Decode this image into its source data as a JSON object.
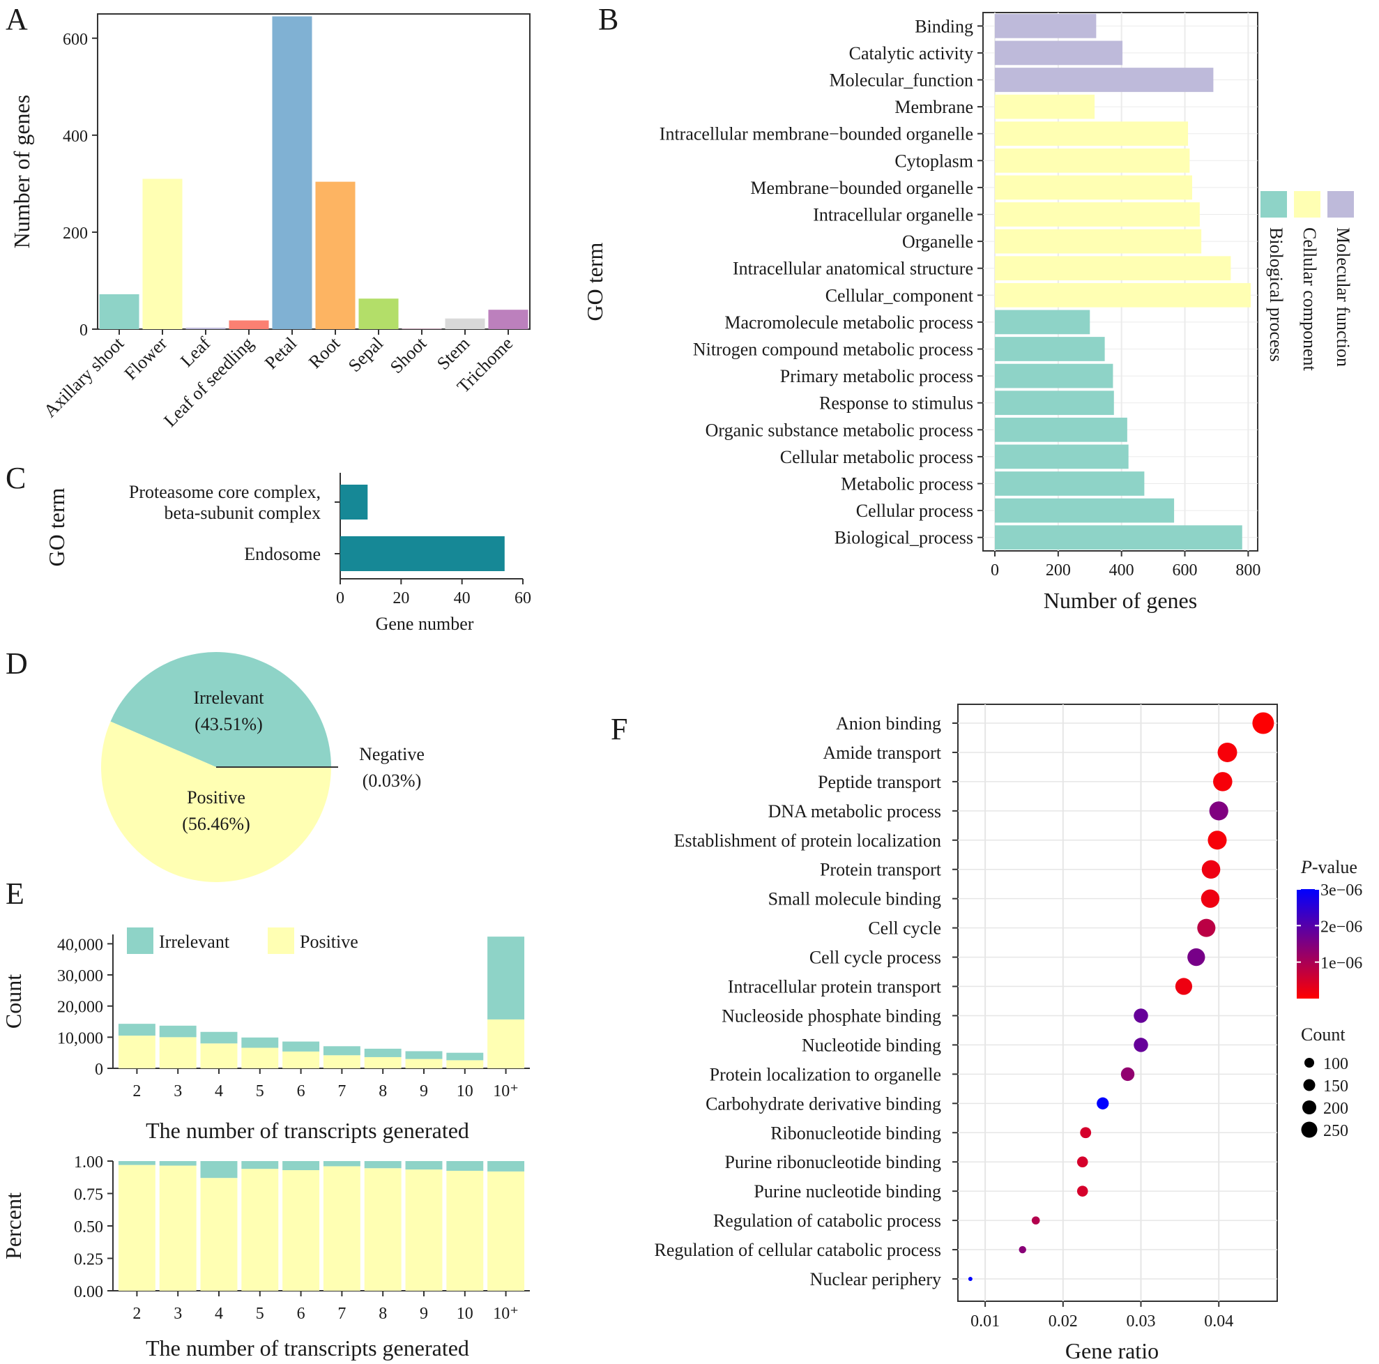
{
  "panels": {
    "A": "A",
    "B": "B",
    "C": "C",
    "D": "D",
    "E": "E",
    "F": "F"
  },
  "colors": {
    "teal": "#8ed3c7",
    "yellow": "#ffffb3",
    "lavender": "#bebada",
    "salmon": "#fb8072",
    "blue": "#80b1d3",
    "orange": "#fdb462",
    "green": "#b3de69",
    "pink": "#fccde5",
    "grey": "#d9d9d9",
    "purple": "#bc80bd",
    "darkteal": "#168896"
  },
  "chart_data": [
    {
      "id": "A",
      "type": "bar",
      "title": "",
      "xlabel": "",
      "ylabel": "Number of genes",
      "ylim": [
        0,
        650
      ],
      "yticks": [
        0,
        200,
        400,
        600
      ],
      "categories": [
        "Axillary shoot",
        "Flower",
        "Leaf",
        "Leaf of seedling",
        "Petal",
        "Root",
        "Sepal",
        "Shoot",
        "Stem",
        "Trichome"
      ],
      "values": [
        72,
        310,
        3,
        18,
        645,
        304,
        63,
        1,
        22,
        40
      ],
      "bar_colors": [
        "#8ed3c7",
        "#ffffb3",
        "#bebada",
        "#fb8072",
        "#80b1d3",
        "#fdb462",
        "#b3de69",
        "#fccde5",
        "#d9d9d9",
        "#bc80bd"
      ]
    },
    {
      "id": "B",
      "type": "bar",
      "orientation": "horizontal",
      "xlabel": "Number of genes",
      "ylabel": "GO term",
      "xlim": [
        0,
        830
      ],
      "xticks": [
        0,
        200,
        400,
        600,
        800
      ],
      "categories": [
        "Binding",
        "Catalytic activity",
        "Molecular_function",
        "Membrane",
        "Intracellular membrane−bounded organelle",
        "Cytoplasm",
        "Membrane−bounded organelle",
        "Intracellular organelle",
        "Organelle",
        "Intracellular anatomical structure",
        "Cellular_component",
        "Macromolecule metabolic process",
        "Nitrogen compound metabolic process",
        "Primary metabolic process",
        "Response to stimulus",
        "Organic substance metabolic process",
        "Cellular metabolic process",
        "Metabolic process",
        "Cellular process",
        "Biological_process"
      ],
      "values": [
        320,
        403,
        690,
        315,
        610,
        615,
        623,
        647,
        652,
        745,
        808,
        300,
        347,
        373,
        376,
        418,
        422,
        472,
        566,
        781
      ],
      "groups": [
        "Molecular function",
        "Molecular function",
        "Molecular function",
        "Cellular component",
        "Cellular component",
        "Cellular component",
        "Cellular component",
        "Cellular component",
        "Cellular component",
        "Cellular component",
        "Cellular component",
        "Biological process",
        "Biological process",
        "Biological process",
        "Biological process",
        "Biological process",
        "Biological process",
        "Biological process",
        "Biological process",
        "Biological process"
      ],
      "legend": [
        {
          "name": "Biological process",
          "color": "#8ed3c7"
        },
        {
          "name": "Cellular component",
          "color": "#ffffb3"
        },
        {
          "name": "Molecular function",
          "color": "#bebada"
        }
      ],
      "legend_position": "right"
    },
    {
      "id": "C",
      "type": "bar",
      "orientation": "horizontal",
      "xlabel": "Gene number",
      "ylabel": "GO term",
      "xlim": [
        0,
        60
      ],
      "xticks": [
        0,
        20,
        40,
        60
      ],
      "categories": [
        [
          "Proteasome core complex,",
          "beta-subunit complex"
        ],
        [
          "Endosome"
        ]
      ],
      "values": [
        9,
        54
      ],
      "color": "#168896"
    },
    {
      "id": "D",
      "type": "pie",
      "slices": [
        {
          "label": "Irrelevant",
          "pct_label": "(43.51%)",
          "value": 43.51,
          "color": "#8ed3c7"
        },
        {
          "label": "Positive",
          "pct_label": "(56.46%)",
          "value": 56.46,
          "color": "#ffffb3"
        },
        {
          "label": "Negative",
          "pct_label": "(0.03%)",
          "value": 0.03,
          "color": "#fb8072"
        }
      ]
    },
    {
      "id": "E1",
      "type": "bar",
      "stacked": true,
      "xlabel": "The number of transcripts generated",
      "ylabel": "Count",
      "ylim": [
        0,
        43000
      ],
      "yticks": [
        0,
        10000,
        20000,
        30000,
        40000
      ],
      "ytick_labels": [
        "0",
        "10,000",
        "20,000",
        "30,000",
        "40,000"
      ],
      "categories": [
        "2",
        "3",
        "4",
        "5",
        "6",
        "7",
        "8",
        "9",
        "10",
        "10⁺"
      ],
      "series": [
        {
          "name": "Positive",
          "color": "#ffffb3",
          "values": [
            10500,
            10000,
            8000,
            6600,
            5400,
            4200,
            3600,
            3000,
            2600,
            15700
          ]
        },
        {
          "name": "Irrelevant",
          "color": "#8ed3c7",
          "values": [
            3800,
            3700,
            3700,
            3300,
            3200,
            2900,
            2700,
            2500,
            2400,
            26600
          ]
        }
      ],
      "legend": [
        {
          "name": "Irrelevant",
          "color": "#8ed3c7"
        },
        {
          "name": "Positive",
          "color": "#ffffb3"
        }
      ],
      "legend_position": "top"
    },
    {
      "id": "E2",
      "type": "bar",
      "stacked": true,
      "xlabel": "The number of transcripts generated",
      "ylabel": "Percent",
      "ylim": [
        0,
        1.0
      ],
      "yticks": [
        0,
        0.25,
        0.5,
        0.75,
        1.0
      ],
      "ytick_labels": [
        "0.00",
        "0.25",
        "0.50",
        "0.75",
        "1.00"
      ],
      "categories": [
        "2",
        "3",
        "4",
        "5",
        "6",
        "7",
        "8",
        "9",
        "10",
        "10⁺"
      ],
      "series": [
        {
          "name": "Positive",
          "color": "#ffffb3",
          "values": [
            0.97,
            0.965,
            0.87,
            0.94,
            0.93,
            0.96,
            0.945,
            0.935,
            0.925,
            0.92
          ]
        },
        {
          "name": "Irrelevant",
          "color": "#8ed3c7",
          "values": [
            0.03,
            0.035,
            0.13,
            0.06,
            0.07,
            0.04,
            0.055,
            0.065,
            0.075,
            0.08
          ]
        }
      ]
    },
    {
      "id": "F",
      "type": "scatter",
      "xlabel": "Gene ratio",
      "ylabel": "",
      "xlim": [
        0.0065,
        0.0475
      ],
      "xticks": [
        0.01,
        0.02,
        0.03,
        0.04
      ],
      "xtick_labels": [
        "0.01",
        "0.02",
        "0.03",
        "0.04"
      ],
      "categories": [
        "Anion binding",
        "Amide transport",
        "Peptide transport",
        "DNA metabolic process",
        "Establishment of protein localization",
        "Protein transport",
        "Small molecule binding",
        "Cell cycle",
        "Cell cycle process",
        "Intracellular protein transport",
        "Nucleoside phosphate binding",
        "Nucleotide binding",
        "Protein localization to organelle",
        "Carbohydrate derivative binding",
        "Ribonucleotide binding",
        "Purine ribonucleotide binding",
        "Purine nucleotide binding",
        "Regulation of catabolic process",
        "Regulation of cellular catabolic process",
        "Nuclear periphery"
      ],
      "gene_ratio": [
        0.0457,
        0.0411,
        0.0405,
        0.04,
        0.0398,
        0.039,
        0.0389,
        0.0384,
        0.0371,
        0.0355,
        0.03,
        0.03,
        0.0283,
        0.0251,
        0.0229,
        0.0225,
        0.0225,
        0.0165,
        0.0148,
        0.0081
      ],
      "count": [
        272,
        245,
        241,
        238,
        237,
        232,
        231,
        228,
        221,
        211,
        178,
        178,
        168,
        149,
        136,
        134,
        134,
        98,
        88,
        48
      ],
      "p_value": [
        2e-08,
        1e-07,
        1e-07,
        1.5e-06,
        1e-07,
        2e-07,
        2e-07,
        8e-07,
        1.6e-06,
        2e-07,
        1.8e-06,
        1.8e-06,
        1.3e-06,
        3e-06,
        5e-07,
        5e-07,
        5e-07,
        9e-07,
        1.4e-06,
        3e-06
      ],
      "color_scale": {
        "title_italic": "P",
        "title_rest": "-value",
        "low": "#ff0000",
        "high": "#0000ff",
        "ticks": [
          "3e−06",
          "2e−06",
          "1e−06"
        ],
        "tick_values": [
          3e-06,
          2e-06,
          1e-06
        ],
        "range": [
          0,
          3e-06
        ]
      },
      "size_legend": {
        "title": "Count",
        "values": [
          "100",
          "150",
          "200",
          "250"
        ]
      }
    }
  ]
}
